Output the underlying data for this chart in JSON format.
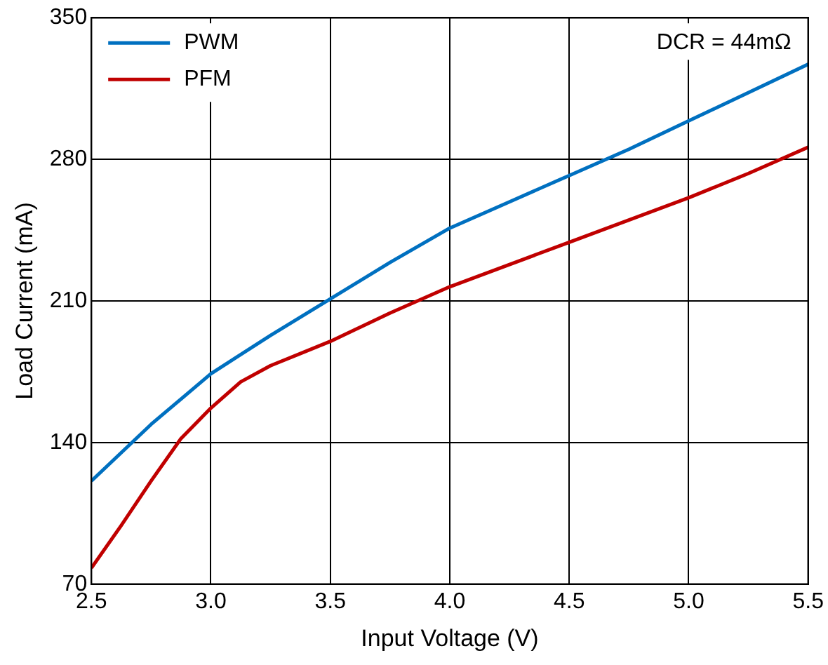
{
  "chart_data": {
    "type": "line",
    "xlabel": "Input Voltage (V)",
    "ylabel": "Load Current (mA)",
    "xlim": [
      2.5,
      5.5
    ],
    "xticks": [
      {
        "value": 2.5,
        "label": "2.5"
      },
      {
        "value": 3,
        "label": "3.0"
      },
      {
        "value": 3.5,
        "label": "3.5"
      },
      {
        "value": 4,
        "label": "4.0"
      },
      {
        "value": 4.5,
        "label": "4.5"
      },
      {
        "value": 5,
        "label": "5.0"
      },
      {
        "value": 5.5,
        "label": "5.5"
      }
    ],
    "ylim": [
      70,
      350
    ],
    "yticks": [
      70,
      140,
      210,
      280,
      350
    ],
    "grid": true,
    "legend": "top left",
    "marker": "none",
    "line_style": "solid",
    "annotations": [
      "DCR = 44mΩ"
    ],
    "series": [
      {
        "name": "PWM",
        "color": "#0070c0",
        "x": [
          2.5,
          2.75,
          3,
          3.25,
          3.5,
          3.75,
          4,
          4.25,
          4.5,
          4.75,
          5,
          5.25,
          5.5
        ],
        "values": [
          121,
          149,
          174,
          193,
          211,
          229,
          246,
          259,
          272,
          285,
          299,
          313,
          327
        ]
      },
      {
        "name": "PFM",
        "color": "#c00000",
        "x": [
          2.5,
          2.625,
          2.75,
          2.875,
          3,
          3.125,
          3.25,
          3.5,
          3.75,
          4,
          4.25,
          4.5,
          4.75,
          5,
          5.25,
          5.5
        ],
        "values": [
          78,
          99,
          121,
          142,
          157,
          170,
          178,
          190,
          204,
          217,
          228,
          239,
          250,
          261,
          273,
          286
        ]
      }
    ]
  }
}
